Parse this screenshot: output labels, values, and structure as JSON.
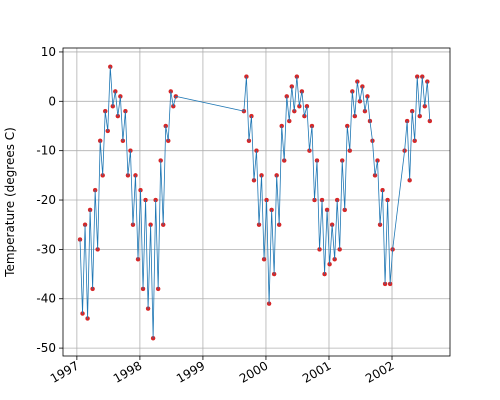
{
  "chart_data": {
    "type": "line",
    "ylabel": "Temperature (degrees C)",
    "xlim": [
      1996.78,
      2002.92
    ],
    "ylim": [
      -51.6,
      10.8
    ],
    "xticks": [
      1997,
      1998,
      1999,
      2000,
      2001,
      2002
    ],
    "yticks": [
      -50,
      -40,
      -30,
      -20,
      -10,
      0,
      10
    ],
    "grid": true,
    "x": [
      1997.05,
      1997.09,
      1997.13,
      1997.17,
      1997.21,
      1997.25,
      1997.29,
      1997.33,
      1997.37,
      1997.41,
      1997.45,
      1997.49,
      1997.53,
      1997.57,
      1997.61,
      1997.65,
      1997.69,
      1997.73,
      1997.77,
      1997.81,
      1997.85,
      1997.89,
      1997.93,
      1997.97,
      1998.01,
      1998.05,
      1998.09,
      1998.13,
      1998.17,
      1998.21,
      1998.25,
      1998.29,
      1998.33,
      1998.37,
      1998.41,
      1998.45,
      1998.49,
      1998.53,
      1998.57,
      1999.65,
      1999.69,
      1999.73,
      1999.77,
      1999.81,
      1999.85,
      1999.89,
      1999.93,
      1999.97,
      2000.01,
      2000.05,
      2000.09,
      2000.13,
      2000.17,
      2000.21,
      2000.25,
      2000.29,
      2000.33,
      2000.37,
      2000.41,
      2000.45,
      2000.49,
      2000.53,
      2000.57,
      2000.61,
      2000.65,
      2000.69,
      2000.73,
      2000.77,
      2000.81,
      2000.85,
      2000.89,
      2000.93,
      2000.97,
      2001.01,
      2001.05,
      2001.09,
      2001.13,
      2001.17,
      2001.21,
      2001.25,
      2001.29,
      2001.33,
      2001.37,
      2001.41,
      2001.45,
      2001.49,
      2001.53,
      2001.57,
      2001.61,
      2001.65,
      2001.69,
      2001.73,
      2001.77,
      2001.81,
      2001.85,
      2001.89,
      2001.93,
      2001.97,
      2002.01,
      2002.2,
      2002.24,
      2002.28,
      2002.32,
      2002.36,
      2002.4,
      2002.44,
      2002.48,
      2002.52,
      2002.56,
      2002.6
    ],
    "series": [
      {
        "color": "#1f77b4",
        "marker_color": "#d62728",
        "values": [
          -28,
          -43,
          -25,
          -44,
          -22,
          -38,
          -18,
          -30,
          -8,
          -15,
          -2,
          -6,
          7,
          -1,
          2,
          -3,
          1,
          -8,
          -2,
          -15,
          -10,
          -25,
          -15,
          -32,
          -18,
          -38,
          -20,
          -42,
          -25,
          -48,
          -20,
          -38,
          -12,
          -25,
          -5,
          -8,
          2,
          -1,
          1,
          -2,
          5,
          -8,
          -3,
          -16,
          -10,
          -25,
          -15,
          -32,
          -20,
          -41,
          -22,
          -35,
          -15,
          -25,
          -5,
          -12,
          1,
          -4,
          3,
          -2,
          5,
          -1,
          2,
          -3,
          -1,
          -10,
          -5,
          -20,
          -12,
          -30,
          -20,
          -35,
          -22,
          -33,
          -25,
          -32,
          -20,
          -30,
          -12,
          -22,
          -5,
          -10,
          2,
          -3,
          4,
          0,
          3,
          -2,
          1,
          -4,
          -8,
          -15,
          -12,
          -25,
          -18,
          -37,
          -20,
          -37,
          -30,
          -10,
          -4,
          -16,
          -2,
          -8,
          5,
          -3,
          5,
          -1,
          4,
          -4
        ]
      }
    ]
  }
}
